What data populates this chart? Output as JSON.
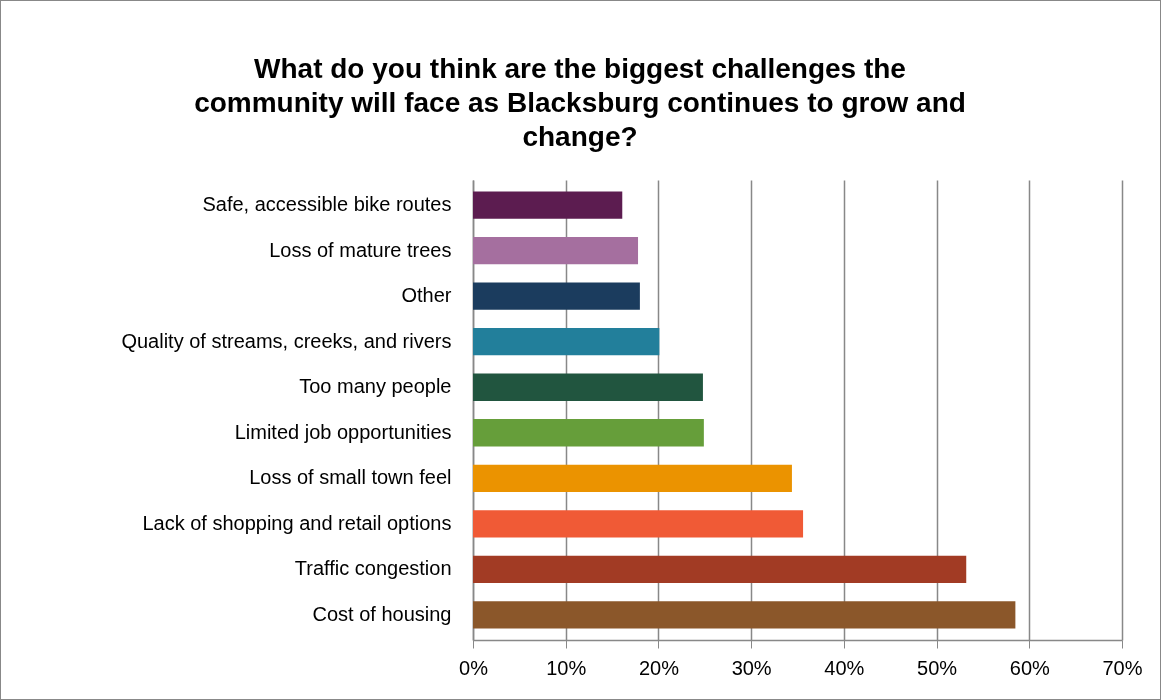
{
  "chart_data": {
    "type": "bar",
    "orientation": "horizontal",
    "title": "What do you think are the biggest challenges the community will face as Blacksburg continues to grow and change?",
    "categories": [
      "Safe, accessible bike routes",
      "Loss of mature trees",
      "Other",
      "Quality of streams, creeks, and rivers",
      "Too many people",
      "Limited job opportunities",
      "Loss of small town feel",
      "Lack of shopping and retail options",
      "Traffic congestion",
      "Cost of housing"
    ],
    "values": [
      16.1,
      17.8,
      18.0,
      20.1,
      24.8,
      24.9,
      34.4,
      35.6,
      53.2,
      58.5
    ],
    "colors": [
      "#5c1c50",
      "#a56f9f",
      "#1b3c5e",
      "#227f9b",
      "#21553f",
      "#669e3a",
      "#eb9300",
      "#f05a36",
      "#a23b24",
      "#8b572a"
    ],
    "xlim": [
      0,
      70
    ],
    "xticks": [
      {
        "value": 0,
        "label": "0%"
      },
      {
        "value": 10,
        "label": "10%"
      },
      {
        "value": 20,
        "label": "20%"
      },
      {
        "value": 30,
        "label": "30%"
      },
      {
        "value": 40,
        "label": "40%"
      },
      {
        "value": 50,
        "label": "50%"
      },
      {
        "value": 60,
        "label": "60%"
      },
      {
        "value": 70,
        "label": "70%"
      }
    ],
    "grid": "x",
    "legend": false
  }
}
